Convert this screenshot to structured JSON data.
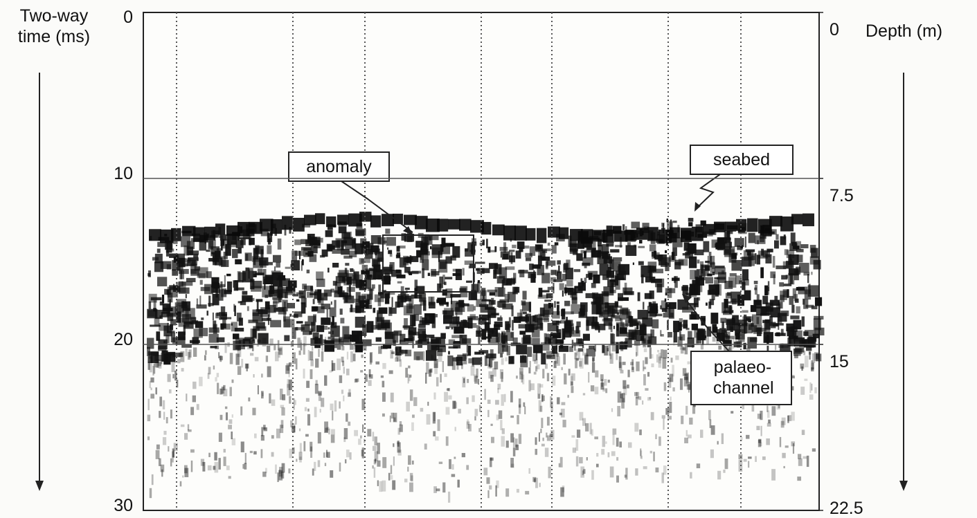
{
  "chart_data": {
    "type": "seismic-profile",
    "ylabel": "Two-way time (ms)",
    "y2label": "Depth (m)",
    "ylim": [
      0,
      30
    ],
    "yticks": [
      0,
      10,
      20,
      30
    ],
    "y2lim": [
      0,
      22.5
    ],
    "y2ticks": [
      0,
      7.5,
      15,
      22.5
    ],
    "grid": true,
    "annotations": [
      "anomaly",
      "seabed",
      "palaeo-channel"
    ]
  }
}
